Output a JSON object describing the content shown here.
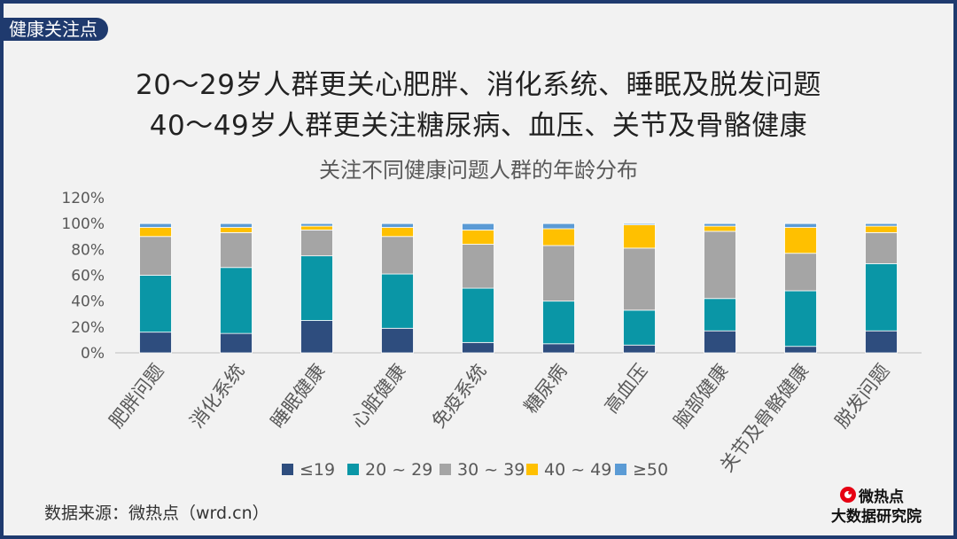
{
  "header_tag": "健康关注点",
  "headlines": [
    "20～29岁人群更关心肥胖、消化系统、睡眠及脱发问题",
    "40～49岁人群更关注糖尿病、血压、关节及骨骼健康"
  ],
  "source": "数据来源：微热点（wrd.cn）",
  "logo": {
    "line1": "微热点",
    "line2": "大数据研究院"
  },
  "colors": {
    "frame": "#1f3a6e",
    "s1": "#2e4d7e",
    "s2": "#0a96a6",
    "s3": "#a5a5a5",
    "s4": "#ffc000",
    "s5": "#5b9bd5"
  },
  "chart_data": {
    "type": "bar",
    "stacked": true,
    "title": "关注不同健康问题人群的年龄分布",
    "categories": [
      "肥胖问题",
      "消化系统",
      "睡眠健康",
      "心脏健康",
      "免疫系统",
      "糖尿病",
      "高血压",
      "脑部健康",
      "关节及骨骼健康",
      "脱发问题"
    ],
    "series": [
      {
        "name": "≤19",
        "values": [
          16,
          15,
          25,
          19,
          8,
          7,
          6,
          17,
          5,
          17
        ]
      },
      {
        "name": "20 ~ 29",
        "values": [
          44,
          51,
          50,
          42,
          42,
          33,
          27,
          25,
          43,
          52
        ]
      },
      {
        "name": "30 ~ 39",
        "values": [
          30,
          27,
          20,
          29,
          34,
          43,
          48,
          52,
          29,
          24
        ]
      },
      {
        "name": "40 ~ 49",
        "values": [
          7,
          4,
          3,
          7,
          11,
          13,
          18,
          4,
          20,
          5
        ]
      },
      {
        "name": "≥50",
        "values": [
          3,
          3,
          2,
          3,
          5,
          4,
          1,
          2,
          3,
          2
        ]
      }
    ],
    "ylim": [
      0,
      120
    ],
    "yticks": [
      0,
      20,
      40,
      60,
      80,
      100,
      120
    ],
    "ytick_labels": [
      "0%",
      "20%",
      "40%",
      "60%",
      "80%",
      "100%",
      "120%"
    ],
    "xlabel": "",
    "ylabel": "",
    "legend_position": "bottom"
  }
}
